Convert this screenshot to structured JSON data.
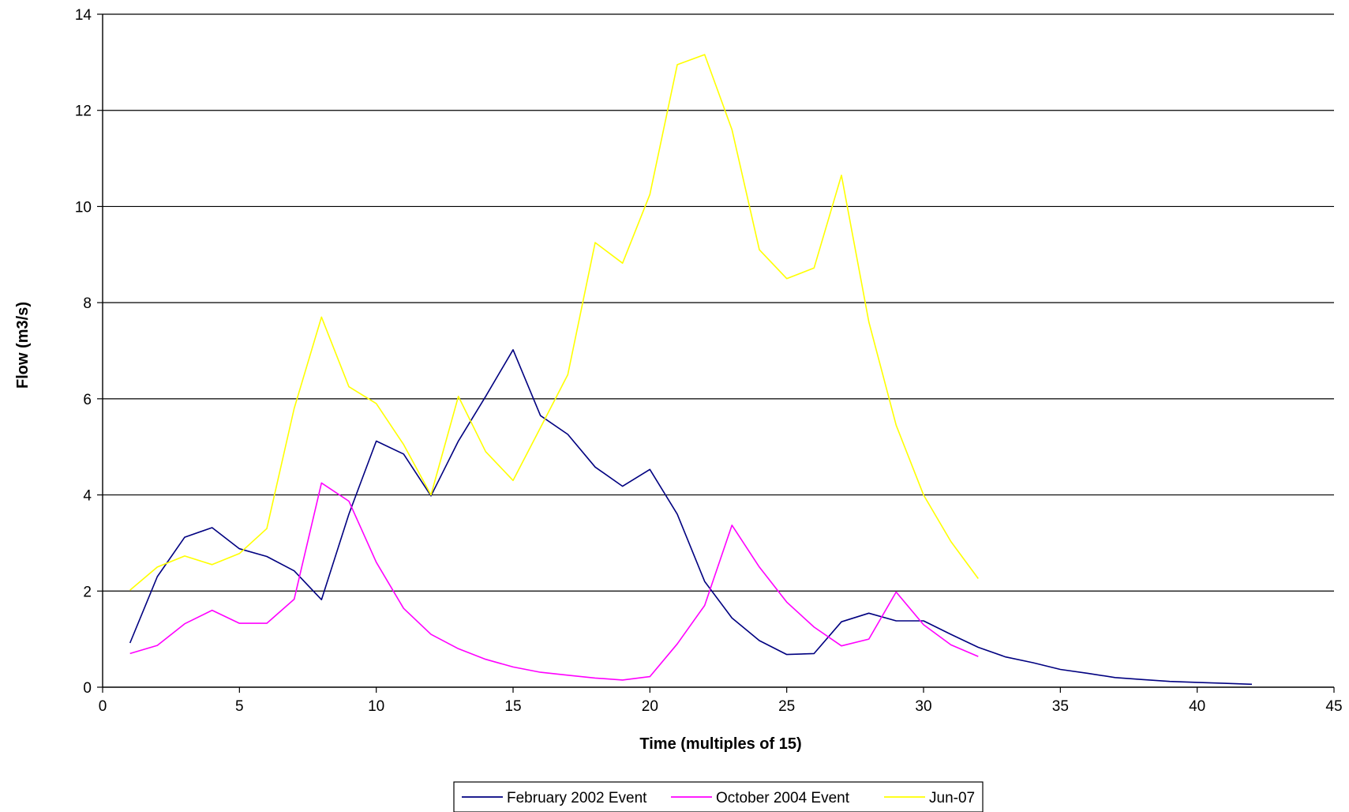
{
  "chart_data": {
    "type": "line",
    "xlabel": "Time (multiples of 15)",
    "ylabel": "Flow (m3/s)",
    "xlim": [
      0,
      45
    ],
    "ylim": [
      0,
      14
    ],
    "xticks": [
      0,
      5,
      10,
      15,
      20,
      25,
      30,
      35,
      40,
      45
    ],
    "yticks": [
      0,
      2,
      4,
      6,
      8,
      10,
      12,
      14
    ],
    "grid": "horizontal",
    "legend": "bottom",
    "series": [
      {
        "name": "February 2002 Event",
        "color": "#000080",
        "x": [
          1,
          2,
          3,
          4,
          5,
          6,
          7,
          8,
          9,
          10,
          11,
          12,
          13,
          14,
          15,
          16,
          17,
          18,
          19,
          20,
          21,
          22,
          23,
          24,
          25,
          26,
          27,
          28,
          29,
          30,
          31,
          32,
          33,
          34,
          35,
          36,
          37,
          38,
          39,
          40,
          41,
          42
        ],
        "y": [
          0.92,
          2.3,
          3.12,
          3.32,
          2.88,
          2.72,
          2.42,
          1.82,
          3.6,
          5.12,
          4.85,
          3.98,
          5.12,
          6.05,
          7.02,
          5.65,
          5.26,
          4.58,
          4.18,
          4.53,
          3.6,
          2.2,
          1.44,
          0.97,
          0.68,
          0.7,
          1.36,
          1.54,
          1.38,
          1.38,
          1.1,
          0.83,
          0.63,
          0.51,
          0.37,
          0.29,
          0.2,
          0.16,
          0.12,
          0.1,
          0.08,
          0.06
        ]
      },
      {
        "name": "October 2004 Event",
        "color": "#FF00FF",
        "x": [
          1,
          2,
          3,
          4,
          5,
          6,
          7,
          8,
          9,
          10,
          11,
          12,
          13,
          14,
          15,
          16,
          17,
          18,
          19,
          20,
          21,
          22,
          23,
          24,
          25,
          26,
          27,
          28,
          29,
          30,
          31,
          32
        ],
        "y": [
          0.7,
          0.87,
          1.32,
          1.6,
          1.33,
          1.33,
          1.83,
          4.25,
          3.87,
          2.6,
          1.64,
          1.1,
          0.8,
          0.58,
          0.42,
          0.31,
          0.25,
          0.19,
          0.15,
          0.22,
          0.9,
          1.7,
          3.37,
          2.5,
          1.77,
          1.25,
          0.86,
          1.0,
          1.98,
          1.3,
          0.88,
          0.64
        ]
      },
      {
        "name": "Jun-07",
        "color": "#FFFF00",
        "x": [
          1,
          2,
          3,
          4,
          5,
          6,
          7,
          8,
          9,
          10,
          11,
          12,
          13,
          14,
          15,
          16,
          17,
          18,
          19,
          20,
          21,
          22,
          23,
          24,
          25,
          26,
          27,
          28,
          29,
          30,
          31,
          32
        ],
        "y": [
          2.02,
          2.5,
          2.73,
          2.55,
          2.78,
          3.3,
          5.8,
          7.7,
          6.25,
          5.9,
          5.05,
          4.0,
          6.05,
          4.9,
          4.3,
          5.4,
          6.5,
          9.25,
          8.82,
          10.25,
          12.95,
          13.16,
          11.6,
          9.1,
          8.5,
          8.72,
          10.65,
          7.6,
          5.45,
          4.0,
          3.03,
          2.26
        ]
      }
    ]
  }
}
